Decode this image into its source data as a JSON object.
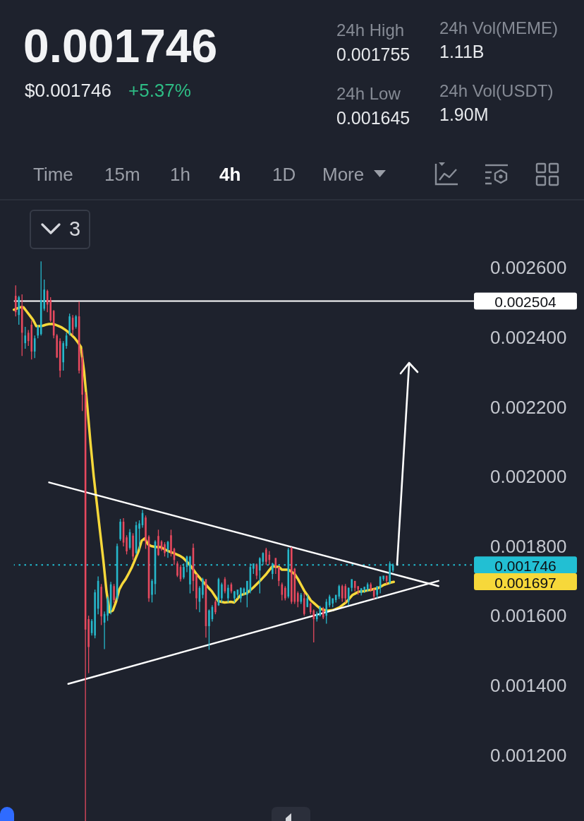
{
  "chart_data": {
    "type": "candlestick",
    "title": "0.001746",
    "categories": [
      null,
      null,
      null,
      null,
      null,
      null,
      null,
      null,
      null,
      null,
      null,
      null,
      null,
      null,
      null,
      null,
      null,
      null,
      null,
      null,
      null,
      null,
      null,
      null,
      null,
      null,
      null,
      null,
      null,
      null,
      null,
      null,
      null,
      null,
      null,
      null,
      null,
      null,
      null,
      null,
      null,
      null,
      null,
      null,
      null,
      null,
      null,
      null,
      null,
      null,
      null,
      null,
      null,
      null,
      null,
      null,
      null,
      null,
      null,
      null,
      null,
      null,
      null,
      null,
      null,
      null,
      null,
      null,
      null,
      null,
      null,
      null,
      null,
      null,
      null,
      null,
      null,
      null,
      null,
      null,
      null,
      null,
      null,
      null,
      null,
      null,
      null,
      null,
      null,
      null,
      null,
      null,
      null,
      null,
      null,
      null,
      null,
      null,
      null,
      null,
      null,
      null,
      null,
      null,
      null,
      null,
      null,
      null,
      null,
      null,
      null,
      null,
      null,
      null,
      null,
      null,
      null,
      null,
      null,
      null,
      null,
      null,
      null,
      null,
      null,
      null,
      null,
      null,
      null,
      null,
      null,
      null,
      null,
      null,
      null,
      null,
      null,
      null,
      null,
      null,
      null,
      null,
      null,
      null,
      null,
      null,
      null,
      null
    ],
    "ohlc": [
      [
        0.002519,
        0.002549,
        0.00246,
        0.002472
      ],
      [
        0.002464,
        0.002519,
        0.002436,
        0.002515
      ],
      [
        0.00249,
        0.002523,
        0.002346,
        0.002413
      ],
      [
        0.002383,
        0.00243,
        0.002367,
        0.002405
      ],
      [
        0.002413,
        0.002421,
        0.002375,
        0.002389
      ],
      [
        0.002436,
        0.002448,
        0.002336,
        0.002359
      ],
      [
        0.002359,
        0.002405,
        0.00234,
        0.002397
      ],
      [
        0.002405,
        0.002436,
        0.002397,
        0.00243
      ],
      [
        0.002409,
        0.002618,
        0.002405,
        0.002507
      ],
      [
        0.002482,
        0.002566,
        0.002476,
        0.002537
      ],
      [
        0.002533,
        0.002537,
        0.002472,
        0.002494
      ],
      [
        0.002507,
        0.002515,
        0.002444,
        0.002448
      ],
      [
        0.002476,
        0.002478,
        0.002397,
        0.002405
      ],
      [
        0.002405,
        0.002409,
        0.00234,
        0.002342
      ],
      [
        0.002389,
        0.002397,
        0.002285,
        0.002304
      ],
      [
        0.002328,
        0.002389,
        0.002304,
        0.002383
      ],
      [
        0.002375,
        0.002413,
        0.002367,
        0.002405
      ],
      [
        0.002409,
        0.002468,
        0.002405,
        0.00246
      ],
      [
        0.002456,
        0.002464,
        0.002405,
        0.002421
      ],
      [
        0.00243,
        0.002464,
        0.002425,
        0.00246
      ],
      [
        0.00246,
        0.002503,
        0.002296,
        0.002304
      ],
      [
        0.002342,
        0.002367,
        0.002188,
        0.002235
      ],
      [
        0.002235,
        0.002243,
        0.00101,
        0.00156
      ],
      [
        0.00159,
        0.0016,
        0.001435,
        0.00151
      ],
      [
        0.00155,
        0.00159,
        0.001543,
        0.001585
      ],
      [
        0.001543,
        0.001675,
        0.001535,
        0.001667
      ],
      [
        0.00162,
        0.001713,
        0.001604,
        0.0017
      ],
      [
        0.001683,
        0.001691,
        0.001573,
        0.001598
      ],
      [
        0.00158,
        0.001612,
        0.001504,
        0.001605
      ],
      [
        0.0016,
        0.001655,
        0.001585,
        0.00165
      ],
      [
        0.001615,
        0.001697,
        0.001604,
        0.00169
      ],
      [
        0.001685,
        0.001691,
        0.001636,
        0.001645
      ],
      [
        0.00165,
        0.001807,
        0.001644,
        0.0018
      ],
      [
        0.00182,
        0.001878,
        0.001815,
        0.00187
      ],
      [
        0.00187,
        0.00188,
        0.001799,
        0.00181
      ],
      [
        0.001825,
        0.001831,
        0.001776,
        0.001785
      ],
      [
        0.001795,
        0.001849,
        0.00179,
        0.00184
      ],
      [
        0.00183,
        0.001837,
        0.00176,
        0.00177
      ],
      [
        0.00178,
        0.00187,
        0.001776,
        0.00186
      ],
      [
        0.00185,
        0.001874,
        0.00179,
        0.001865
      ],
      [
        0.00186,
        0.001904,
        0.001853,
        0.001895
      ],
      [
        0.001882,
        0.001888,
        0.001792,
        0.001813
      ],
      [
        0.001827,
        0.001831,
        0.00164,
        0.00165
      ],
      [
        0.00166,
        0.001705,
        0.001638,
        0.0017
      ],
      [
        0.001691,
        0.001817,
        0.001661,
        0.001813
      ],
      [
        0.001829,
        0.001847,
        0.001772,
        0.001774
      ],
      [
        0.001813,
        0.001817,
        0.001786,
        0.00179
      ],
      [
        0.001805,
        0.001811,
        0.00177,
        0.00178
      ],
      [
        0.00179,
        0.001815,
        0.001766,
        0.001812
      ],
      [
        0.001831,
        0.001847,
        0.00177,
        0.00178
      ],
      [
        0.001792,
        0.001795,
        0.001746,
        0.00176
      ],
      [
        0.00175,
        0.001756,
        0.001711,
        0.001715
      ],
      [
        0.00174,
        0.001746,
        0.001698,
        0.001705
      ],
      [
        0.00171,
        0.00175,
        0.001705,
        0.00174
      ],
      [
        0.00174,
        0.001772,
        0.001725,
        0.00177
      ],
      [
        0.00169,
        0.001772,
        0.001664,
        0.00177
      ],
      [
        0.001795,
        0.001807,
        0.001671,
        0.0017
      ],
      [
        0.001719,
        0.001719,
        0.001618,
        0.00165
      ],
      [
        0.00164,
        0.001685,
        0.00161,
        0.00168
      ],
      [
        0.00166,
        0.001709,
        0.00165,
        0.001705
      ],
      [
        0.001705,
        0.001705,
        0.001537,
        0.00157
      ],
      [
        0.00157,
        0.001618,
        0.001502,
        0.001615
      ],
      [
        0.00159,
        0.00163,
        0.001583,
        0.001625
      ],
      [
        0.00164,
        0.001645,
        0.001604,
        0.00161
      ],
      [
        0.00163,
        0.001709,
        0.001628,
        0.001705
      ],
      [
        0.00165,
        0.001695,
        0.001638,
        0.00169
      ],
      [
        0.001705,
        0.001711,
        0.001664,
        0.00167
      ],
      [
        0.00165,
        0.001689,
        0.001638,
        0.00168
      ],
      [
        0.00169,
        0.001695,
        0.001664,
        0.00167
      ],
      [
        0.00165,
        0.001671,
        0.001638,
        0.00167
      ],
      [
        0.00166,
        0.001675,
        0.00165,
        0.001675
      ],
      [
        0.00165,
        0.001681,
        0.001638,
        0.00168
      ],
      [
        0.001665,
        0.001681,
        0.001658,
        0.001678
      ],
      [
        0.00166,
        0.0017,
        0.001624,
        0.0017
      ],
      [
        0.00167,
        0.00175,
        0.001664,
        0.00174
      ],
      [
        0.001735,
        0.00175,
        0.00172,
        0.00175
      ],
      [
        0.001745,
        0.00175,
        0.001705,
        0.001715
      ],
      [
        0.00173,
        0.001768,
        0.001664,
        0.001765
      ],
      [
        0.001755,
        0.001782,
        0.001746,
        0.00178
      ],
      [
        0.00179,
        0.001795,
        0.001746,
        0.001755
      ],
      [
        0.001775,
        0.001786,
        0.001746,
        0.00176
      ],
      [
        0.00172,
        0.001752,
        0.001705,
        0.00175
      ],
      [
        0.001766,
        0.001766,
        0.00172,
        0.00174
      ],
      [
        0.00174,
        0.00174,
        0.001685,
        0.0017
      ],
      [
        0.00169,
        0.001695,
        0.001644,
        0.00166
      ],
      [
        0.00168,
        0.001685,
        0.001644,
        0.00165
      ],
      [
        0.001655,
        0.001795,
        0.00165,
        0.00179
      ],
      [
        0.001795,
        0.001797,
        0.001634,
        0.00164
      ],
      [
        0.001735,
        0.001737,
        0.001634,
        0.00164
      ],
      [
        0.001665,
        0.00167,
        0.001624,
        0.00164
      ],
      [
        0.00164,
        0.001665,
        0.001634,
        0.00166
      ],
      [
        0.00165,
        0.001665,
        0.0016,
        0.001605
      ],
      [
        0.001625,
        0.00166,
        0.001624,
        0.00165
      ],
      [
        0.001635,
        0.001638,
        0.001604,
        0.00161
      ],
      [
        0.001615,
        0.001618,
        0.001523,
        0.00159
      ],
      [
        0.00159,
        0.001612,
        0.001583,
        0.001605
      ],
      [
        0.0016,
        0.001628,
        0.001598,
        0.001625
      ],
      [
        0.00162,
        0.001625,
        0.00159,
        0.001595
      ],
      [
        0.0016,
        0.001648,
        0.001577,
        0.00164
      ],
      [
        0.00163,
        0.00166,
        0.001624,
        0.001655
      ],
      [
        0.001635,
        0.00165,
        0.001624,
        0.00165
      ],
      [
        0.001645,
        0.00166,
        0.001638,
        0.00166
      ],
      [
        0.001655,
        0.001689,
        0.001648,
        0.001685
      ],
      [
        0.001685,
        0.001689,
        0.00164,
        0.00165
      ],
      [
        0.001685,
        0.001691,
        0.001638,
        0.00165
      ],
      [
        0.00164,
        0.001681,
        0.00163,
        0.00168
      ],
      [
        0.00168,
        0.001705,
        0.00167,
        0.001705
      ],
      [
        0.0017,
        0.0017,
        0.00167,
        0.00168
      ],
      [
        0.001685,
        0.001685,
        0.00166,
        0.001675
      ],
      [
        0.001665,
        0.001679,
        0.001658,
        0.001679
      ],
      [
        0.001675,
        0.001683,
        0.001665,
        0.001683
      ],
      [
        0.001675,
        0.001695,
        0.001669,
        0.00169
      ],
      [
        0.00169,
        0.001695,
        0.001669,
        0.001675
      ],
      [
        0.001675,
        0.001679,
        0.001648,
        0.001655
      ],
      [
        0.00166,
        0.001685,
        0.00165,
        0.001685
      ],
      [
        0.00168,
        0.001713,
        0.001664,
        0.001713
      ],
      [
        0.001705,
        0.001715,
        0.0017,
        0.001715
      ],
      [
        0.001715,
        0.001715,
        0.00169,
        0.0017
      ],
      [
        0.001695,
        0.001756,
        0.00169,
        0.00175
      ],
      [
        0.00173,
        0.00175,
        0.001725,
        0.001746
      ],
      null,
      null,
      null,
      null,
      null,
      null,
      null,
      null,
      null,
      null,
      null,
      null,
      null,
      null,
      null,
      null,
      null,
      null,
      null,
      null,
      null,
      null,
      null,
      null,
      null,
      null,
      null,
      null
    ],
    "colors": [
      "#e6495e",
      "#26b8cb",
      "#e6495e",
      "#26b8cb",
      "#e6495e",
      "#e6495e",
      "#26b8cb",
      "#26b8cb",
      "#26b8cb",
      "#26b8cb",
      "#e6495e",
      "#e6495e",
      "#e6495e",
      "#e6495e",
      "#e6495e",
      "#26b8cb",
      "#26b8cb",
      "#26b8cb",
      "#e6495e",
      "#26b8cb",
      "#e6495e",
      "#e6495e",
      "#e6495e",
      "#e6495e",
      "#26b8cb",
      "#26b8cb",
      "#26b8cb",
      "#e6495e",
      "#26b8cb",
      "#26b8cb",
      "#26b8cb",
      "#e6495e",
      "#26b8cb",
      "#26b8cb",
      "#e6495e",
      "#e6495e",
      "#26b8cb",
      "#e6495e",
      "#26b8cb",
      "#26b8cb",
      "#26b8cb",
      "#e6495e",
      "#e6495e",
      "#26b8cb",
      "#26b8cb",
      "#e6495e",
      "#e6495e",
      "#e6495e",
      "#26b8cb",
      "#e6495e",
      "#e6495e",
      "#e6495e",
      "#e6495e",
      "#26b8cb",
      "#26b8cb",
      "#26b8cb",
      "#e6495e",
      "#e6495e",
      "#26b8cb",
      "#26b8cb",
      "#e6495e",
      "#26b8cb",
      "#26b8cb",
      "#e6495e",
      "#26b8cb",
      "#26b8cb",
      "#e6495e",
      "#26b8cb",
      "#e6495e",
      "#26b8cb",
      "#26b8cb",
      "#26b8cb",
      "#26b8cb",
      "#26b8cb",
      "#26b8cb",
      "#26b8cb",
      "#e6495e",
      "#26b8cb",
      "#26b8cb",
      "#e6495e",
      "#e6495e",
      "#26b8cb",
      "#e6495e",
      "#e6495e",
      "#e6495e",
      "#e6495e",
      "#26b8cb",
      "#e6495e",
      "#e6495e",
      "#e6495e",
      "#26b8cb",
      "#e6495e",
      "#26b8cb",
      "#e6495e",
      "#e6495e",
      "#26b8cb",
      "#26b8cb",
      "#e6495e",
      "#26b8cb",
      "#26b8cb",
      "#26b8cb",
      "#26b8cb",
      "#26b8cb",
      "#e6495e",
      "#e6495e",
      "#26b8cb",
      "#26b8cb",
      "#e6495e",
      "#e6495e",
      "#26b8cb",
      "#26b8cb",
      "#26b8cb",
      "#e6495e",
      "#e6495e",
      "#26b8cb",
      "#26b8cb",
      "#26b8cb",
      "#e6495e",
      "#26b8cb",
      "#26b8cb",
      null,
      null,
      null,
      null,
      null,
      null,
      null,
      null,
      null,
      null,
      null,
      null,
      null,
      null,
      null,
      null,
      null,
      null,
      null,
      null,
      null,
      null,
      null,
      null,
      null,
      null,
      null,
      null
    ],
    "series": [
      {
        "type": "line",
        "color": "#f6d83a",
        "values": [
          0.002479,
          0.002483,
          0.002486,
          0.002486,
          0.002474,
          0.002462,
          0.00245,
          0.002432,
          0.002432,
          0.002433,
          0.002436,
          0.002438,
          0.002438,
          0.002436,
          0.002432,
          0.002428,
          0.002422,
          0.002415,
          0.002407,
          0.002398,
          0.002386,
          0.002372,
          0.0023,
          0.0022,
          0.002095,
          0.002,
          0.00192,
          0.00184,
          0.00176,
          0.00167,
          0.00161,
          0.001615,
          0.00164,
          0.001675,
          0.001692,
          0.001705,
          0.001722,
          0.00174,
          0.001762,
          0.001784,
          0.001815,
          0.001822,
          0.001805,
          0.0018,
          0.001798,
          0.001797,
          0.001797,
          0.001792,
          0.001787,
          0.001783,
          0.00178,
          0.001776,
          0.001772,
          0.001766,
          0.001757,
          0.001747,
          0.001735,
          0.001722,
          0.001711,
          0.0017,
          0.00169,
          0.00168,
          0.00167,
          0.001656,
          0.001642,
          0.00164,
          0.001638,
          0.001639,
          0.00164,
          0.001638,
          0.001648,
          0.001659,
          0.001662,
          0.001665,
          0.001673,
          0.001681,
          0.00169,
          0.001699,
          0.001709,
          0.001719,
          0.001731,
          0.001742,
          0.001741,
          0.00174,
          0.001732,
          0.001732,
          0.001732,
          0.001726,
          0.001719,
          0.001705,
          0.001688,
          0.001671,
          0.001658,
          0.001644,
          0.001636,
          0.001628,
          0.00162,
          0.001617,
          0.001614,
          0.001615,
          0.001616,
          0.00162,
          0.001624,
          0.001631,
          0.001638,
          0.001648,
          0.001659,
          0.001664,
          0.001669,
          0.00167,
          0.001671,
          0.001673,
          0.001675,
          0.001677,
          0.001679,
          0.001684,
          0.001689,
          0.001692,
          0.001695,
          0.001697,
          null,
          null,
          null,
          null,
          null,
          null,
          null,
          null,
          null,
          null,
          null,
          null,
          null,
          null,
          null,
          null,
          null,
          null,
          null,
          null,
          null,
          null,
          null,
          null,
          null,
          null,
          null,
          null
        ]
      },
      {
        "type": "line",
        "color": "#ffffff",
        "values": [
          null,
          null,
          null,
          null,
          null,
          null,
          null,
          null,
          null,
          null,
          null,
          0.001983,
          null,
          null,
          null,
          null,
          null,
          null,
          null,
          null,
          null,
          null,
          null,
          null,
          null,
          null,
          null,
          null,
          null,
          null,
          null,
          null,
          null,
          null,
          null,
          null,
          null,
          null,
          null,
          null,
          null,
          null,
          null,
          null,
          null,
          null,
          null,
          null,
          null,
          null,
          null,
          null,
          null,
          null,
          null,
          null,
          null,
          null,
          null,
          null,
          null,
          null,
          null,
          null,
          null,
          null,
          null,
          null,
          null,
          null,
          null,
          null,
          null,
          null,
          null,
          null,
          null,
          null,
          null,
          null,
          null,
          null,
          null,
          null,
          null,
          null,
          null,
          null,
          null,
          null,
          null,
          null,
          null,
          null,
          null,
          null,
          null,
          null,
          null,
          null,
          null,
          null,
          null,
          null,
          null,
          null,
          null,
          null,
          null,
          null,
          null,
          null,
          null,
          null,
          null,
          null,
          null,
          null,
          null,
          null,
          null,
          null,
          null,
          null,
          null,
          null,
          null,
          null,
          null,
          null,
          null,
          null,
          null,
          0.001685,
          null,
          null,
          null,
          null,
          null,
          null,
          null,
          null,
          null,
          null,
          null,
          null,
          null,
          null
        ]
      },
      {
        "type": "line",
        "color": "#ffffff",
        "values": [
          null,
          null,
          null,
          null,
          null,
          null,
          null,
          null,
          null,
          null,
          null,
          null,
          null,
          null,
          null,
          null,
          null,
          0.001404,
          null,
          null,
          null,
          null,
          null,
          null,
          null,
          null,
          null,
          null,
          null,
          null,
          null,
          null,
          null,
          null,
          null,
          null,
          null,
          null,
          null,
          null,
          null,
          null,
          null,
          null,
          null,
          null,
          null,
          null,
          null,
          null,
          null,
          null,
          null,
          null,
          null,
          null,
          null,
          null,
          null,
          null,
          null,
          null,
          null,
          null,
          null,
          null,
          null,
          null,
          null,
          null,
          null,
          null,
          null,
          null,
          null,
          null,
          null,
          null,
          null,
          null,
          null,
          null,
          null,
          null,
          null,
          null,
          null,
          null,
          null,
          null,
          null,
          null,
          null,
          null,
          null,
          null,
          null,
          null,
          null,
          null,
          null,
          null,
          null,
          null,
          null,
          null,
          null,
          null,
          null,
          null,
          null,
          null,
          null,
          null,
          null,
          null,
          null,
          null,
          null,
          null,
          null,
          null,
          null,
          null,
          null,
          null,
          null,
          null,
          null,
          null,
          null,
          null,
          null,
          0.0017,
          null,
          null,
          null,
          null,
          null,
          null,
          null,
          null,
          null,
          null,
          null,
          null,
          null,
          null
        ]
      }
    ],
    "ylim": [
      0.001006,
      0.002795
    ],
    "yticks": [
      {
        "value": 0.0012,
        "label": "0.001200"
      },
      {
        "value": 0.0014,
        "label": "0.001400"
      },
      {
        "value": 0.0016,
        "label": "0.001600"
      },
      {
        "value": 0.0018,
        "label": "0.001800"
      },
      {
        "value": 0.002,
        "label": "0.002000"
      },
      {
        "value": 0.0022,
        "label": "0.002200"
      },
      {
        "value": 0.0024,
        "label": "0.002400"
      },
      {
        "value": 0.0026,
        "label": "0.002600"
      }
    ],
    "tick_labels": "y",
    "marker": "none",
    "ref_lines": [
      {
        "axis": "y",
        "value": 0.002504,
        "label": "0.002504",
        "color": "#ffffff",
        "line_style": "solid"
      },
      {
        "axis": "y",
        "value": 0.001746,
        "label": "0.001746",
        "color": "#22bfd3",
        "line_style": "dotted"
      }
    ],
    "annotations": [
      "$0.001746",
      "+5.37%",
      "24h High",
      "0.001755",
      "24h Low",
      "0.001645",
      "24h Vol(MEME)",
      "1.11B",
      "24h Vol(USDT)",
      "1.90M",
      "Time",
      "15m",
      "1h",
      "4h",
      "1D",
      "More",
      "3",
      "0.001697"
    ]
  }
}
